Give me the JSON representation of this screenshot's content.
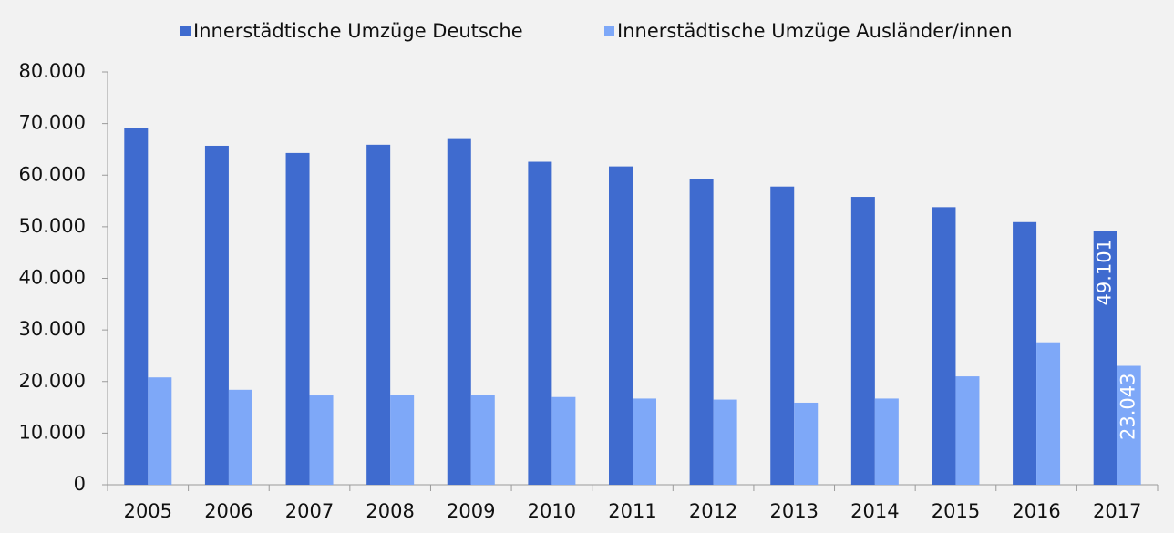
{
  "chart_data": {
    "type": "bar",
    "categories": [
      "2005",
      "2006",
      "2007",
      "2008",
      "2009",
      "2010",
      "2011",
      "2012",
      "2013",
      "2014",
      "2015",
      "2016",
      "2017"
    ],
    "series": [
      {
        "name": "Innerstädtische Umzüge Deutsche",
        "color": "#3f6bcf",
        "values": [
          69100,
          65700,
          64300,
          65900,
          67000,
          62600,
          61700,
          59200,
          57800,
          55800,
          53800,
          50900,
          49101
        ],
        "value_labels": [
          null,
          null,
          null,
          null,
          null,
          null,
          null,
          null,
          null,
          null,
          null,
          null,
          "49.101"
        ]
      },
      {
        "name": "Innerstädtische Umzüge Ausländer/innen",
        "color": "#7ea8f8",
        "values": [
          20800,
          18400,
          17300,
          17400,
          17400,
          17000,
          16700,
          16500,
          15900,
          16700,
          21000,
          27600,
          23043
        ],
        "value_labels": [
          null,
          null,
          null,
          null,
          null,
          null,
          null,
          null,
          null,
          null,
          null,
          null,
          "23.043"
        ]
      }
    ],
    "ylim": [
      0,
      80000
    ],
    "yticks": [
      0,
      {
        "value": 10000,
        "label": "10.000"
      },
      {
        "value": 20000,
        "label": "20.000"
      },
      {
        "value": 30000,
        "label": "30.000"
      },
      {
        "value": 40000,
        "label": "40.000"
      },
      {
        "value": 50000,
        "label": "50.000"
      },
      {
        "value": 60000,
        "label": "60.000"
      },
      {
        "value": 70000,
        "label": "70.000"
      },
      {
        "value": 80000,
        "label": "80.000"
      }
    ],
    "grid": false,
    "legend": "top"
  }
}
